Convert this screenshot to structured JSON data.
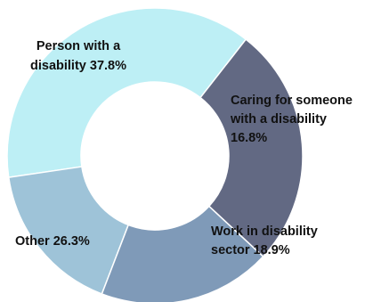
{
  "chart_data": {
    "type": "pie",
    "variant": "donut",
    "categories": [
      "Person with a disability",
      "Caring for someone with a disability",
      "Work in disability sector",
      "Other"
    ],
    "values": [
      37.8,
      16.8,
      18.9,
      26.3
    ],
    "unit": "%",
    "colors": [
      "#bdeff5",
      "#9ec3d8",
      "#7f9ab8",
      "#626983"
    ],
    "label_lines": [
      [
        "Person with a",
        "disability 37.8%"
      ],
      [
        "Caring for someone",
        "with a disability",
        "16.8%"
      ],
      [
        "Work in disability",
        "sector 18.9%"
      ],
      [
        "Other 26.3%"
      ]
    ],
    "title": "",
    "legend": "none"
  }
}
